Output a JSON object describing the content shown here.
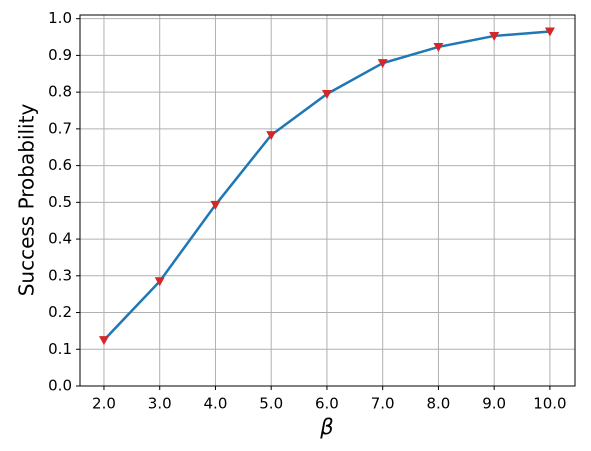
{
  "chart_data": {
    "type": "line",
    "x": [
      2,
      3,
      4,
      5,
      6,
      7,
      8,
      9,
      10
    ],
    "series": [
      {
        "color": "#1f77b4",
        "marker_color": "#d62728",
        "marker": "triangle-down",
        "values": [
          0.125,
          0.285,
          0.493,
          0.683,
          0.795,
          0.879,
          0.923,
          0.953,
          0.965
        ]
      }
    ],
    "xlabel": "β",
    "ylabel": "Success Probability",
    "xlim": [
      1.57,
      10.45
    ],
    "ylim": [
      0,
      1.01
    ],
    "xticks": [
      {
        "value": 2,
        "label": "2.0"
      },
      {
        "value": 3,
        "label": "3.0"
      },
      {
        "value": 4,
        "label": "4.0"
      },
      {
        "value": 5,
        "label": "5.0"
      },
      {
        "value": 6,
        "label": "6.0"
      },
      {
        "value": 7,
        "label": "7.0"
      },
      {
        "value": 8,
        "label": "8.0"
      },
      {
        "value": 9,
        "label": "9.0"
      },
      {
        "value": 10,
        "label": "10.0"
      }
    ],
    "yticks": [
      {
        "value": 0,
        "label": "0.0"
      },
      0.1,
      0.2,
      0.3,
      0.4,
      0.5,
      0.6,
      0.7,
      0.8,
      0.9,
      {
        "value": 1,
        "label": "1.0"
      }
    ],
    "grid": true
  }
}
